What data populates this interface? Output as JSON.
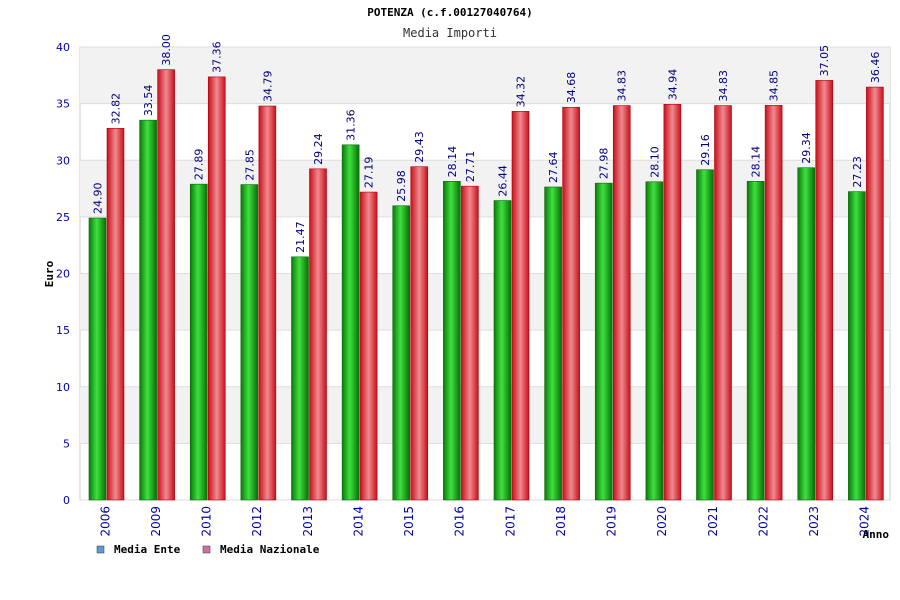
{
  "chart_data": {
    "type": "bar",
    "title": "POTENZA (c.f.00127040764)",
    "subtitle": "Media Importi",
    "xlabel": "Anno",
    "ylabel": "Euro",
    "ylim": [
      0,
      40
    ],
    "yticks": [
      "0",
      "5",
      "10",
      "15",
      "20",
      "25",
      "30",
      "35",
      "40"
    ],
    "categories": [
      "2006",
      "2009",
      "2010",
      "2012",
      "2013",
      "2014",
      "2015",
      "2016",
      "2017",
      "2018",
      "2019",
      "2020",
      "2021",
      "2022",
      "2023",
      "2024"
    ],
    "series": [
      {
        "name": "Media Ente",
        "values": [
          24.9,
          33.54,
          27.89,
          27.85,
          21.47,
          31.36,
          25.98,
          28.14,
          26.44,
          27.64,
          27.98,
          28.1,
          29.16,
          28.14,
          29.34,
          27.23
        ],
        "labels": [
          "24.90",
          "33.54",
          "27.89",
          "27.85",
          "21.47",
          "31.36",
          "25.98",
          "28.14",
          "26.44",
          "27.64",
          "27.98",
          "28.10",
          "29.16",
          "28.14",
          "29.34",
          "27.23"
        ]
      },
      {
        "name": "Media Nazionale",
        "values": [
          32.82,
          38.0,
          37.36,
          34.79,
          29.24,
          27.19,
          29.43,
          27.71,
          34.32,
          34.68,
          34.83,
          34.94,
          34.83,
          34.85,
          37.05,
          36.46
        ],
        "labels": [
          "32.82",
          "38.00",
          "37.36",
          "34.79",
          "29.24",
          "27.19",
          "29.43",
          "27.71",
          "34.32",
          "34.68",
          "34.83",
          "34.94",
          "34.83",
          "34.85",
          "37.05",
          "36.46"
        ]
      }
    ],
    "legend_position": "bottom-left",
    "grid": true
  },
  "legend": {
    "items": [
      {
        "label": "Media Ente",
        "color": "#5b9bd5"
      },
      {
        "label": "Media Nazionale",
        "color": "#d36ea8"
      }
    ]
  },
  "colors": {
    "ente": "#00b000",
    "nazionale": "#e8202a",
    "axis_text": "#0000aa",
    "label_text": "#000080",
    "band": "#f2f2f2",
    "grid": "#dddddd"
  }
}
